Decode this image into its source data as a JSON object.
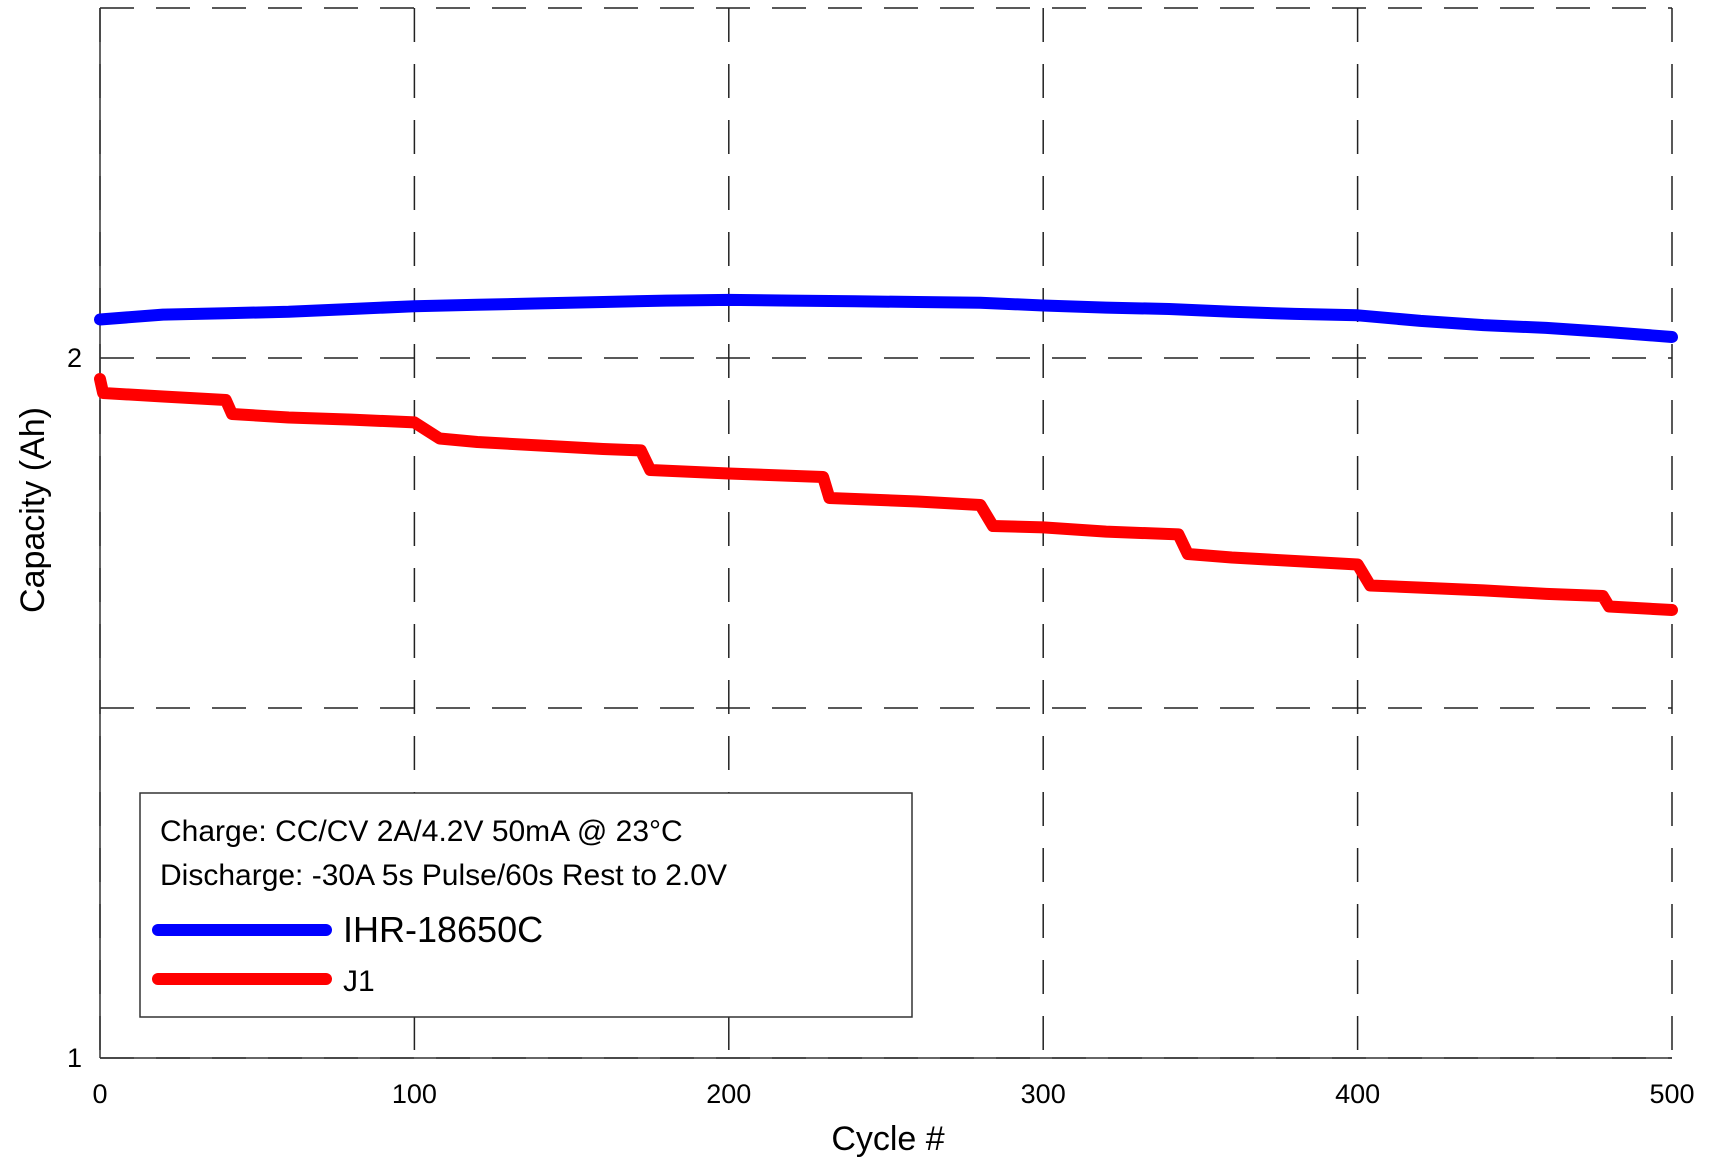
{
  "chart_data": {
    "type": "line",
    "title": "",
    "xlabel": "Cycle #",
    "ylabel": "Capacity (Ah)",
    "xlim": [
      0,
      500
    ],
    "ylim": [
      1,
      2.5
    ],
    "x_ticks": [
      0,
      100,
      200,
      300,
      400,
      500
    ],
    "y_ticks": [
      1,
      2
    ],
    "grid": true,
    "legend_position": "bottom-left",
    "annotations": [
      "Charge: CC/CV 2A/4.2V 50mA @ 23°C",
      "Discharge: -30A 5s Pulse/60s Rest to 2.0V"
    ],
    "series": [
      {
        "name": "IHR-18650C",
        "color": "#0000ff",
        "x": [
          0,
          20,
          40,
          60,
          80,
          100,
          120,
          140,
          160,
          180,
          200,
          220,
          240,
          260,
          280,
          300,
          320,
          340,
          360,
          380,
          400,
          420,
          440,
          460,
          480,
          500
        ],
        "y": [
          2.055,
          2.062,
          2.064,
          2.066,
          2.07,
          2.074,
          2.076,
          2.078,
          2.08,
          2.082,
          2.083,
          2.082,
          2.081,
          2.08,
          2.079,
          2.075,
          2.072,
          2.07,
          2.066,
          2.063,
          2.061,
          2.053,
          2.047,
          2.043,
          2.037,
          2.03
        ]
      },
      {
        "name": "J1",
        "color": "#ff0000",
        "x": [
          0,
          1,
          20,
          40,
          42,
          60,
          80,
          100,
          108,
          120,
          140,
          160,
          172,
          175,
          200,
          230,
          232,
          260,
          280,
          284,
          300,
          320,
          343,
          346,
          360,
          380,
          400,
          404,
          420,
          440,
          460,
          478,
          480,
          500
        ],
        "y": [
          1.97,
          1.95,
          1.945,
          1.94,
          1.92,
          1.915,
          1.912,
          1.908,
          1.885,
          1.88,
          1.875,
          1.87,
          1.868,
          1.84,
          1.835,
          1.83,
          1.8,
          1.795,
          1.79,
          1.76,
          1.758,
          1.752,
          1.748,
          1.72,
          1.715,
          1.71,
          1.705,
          1.675,
          1.672,
          1.668,
          1.663,
          1.66,
          1.645,
          1.64
        ]
      }
    ]
  }
}
